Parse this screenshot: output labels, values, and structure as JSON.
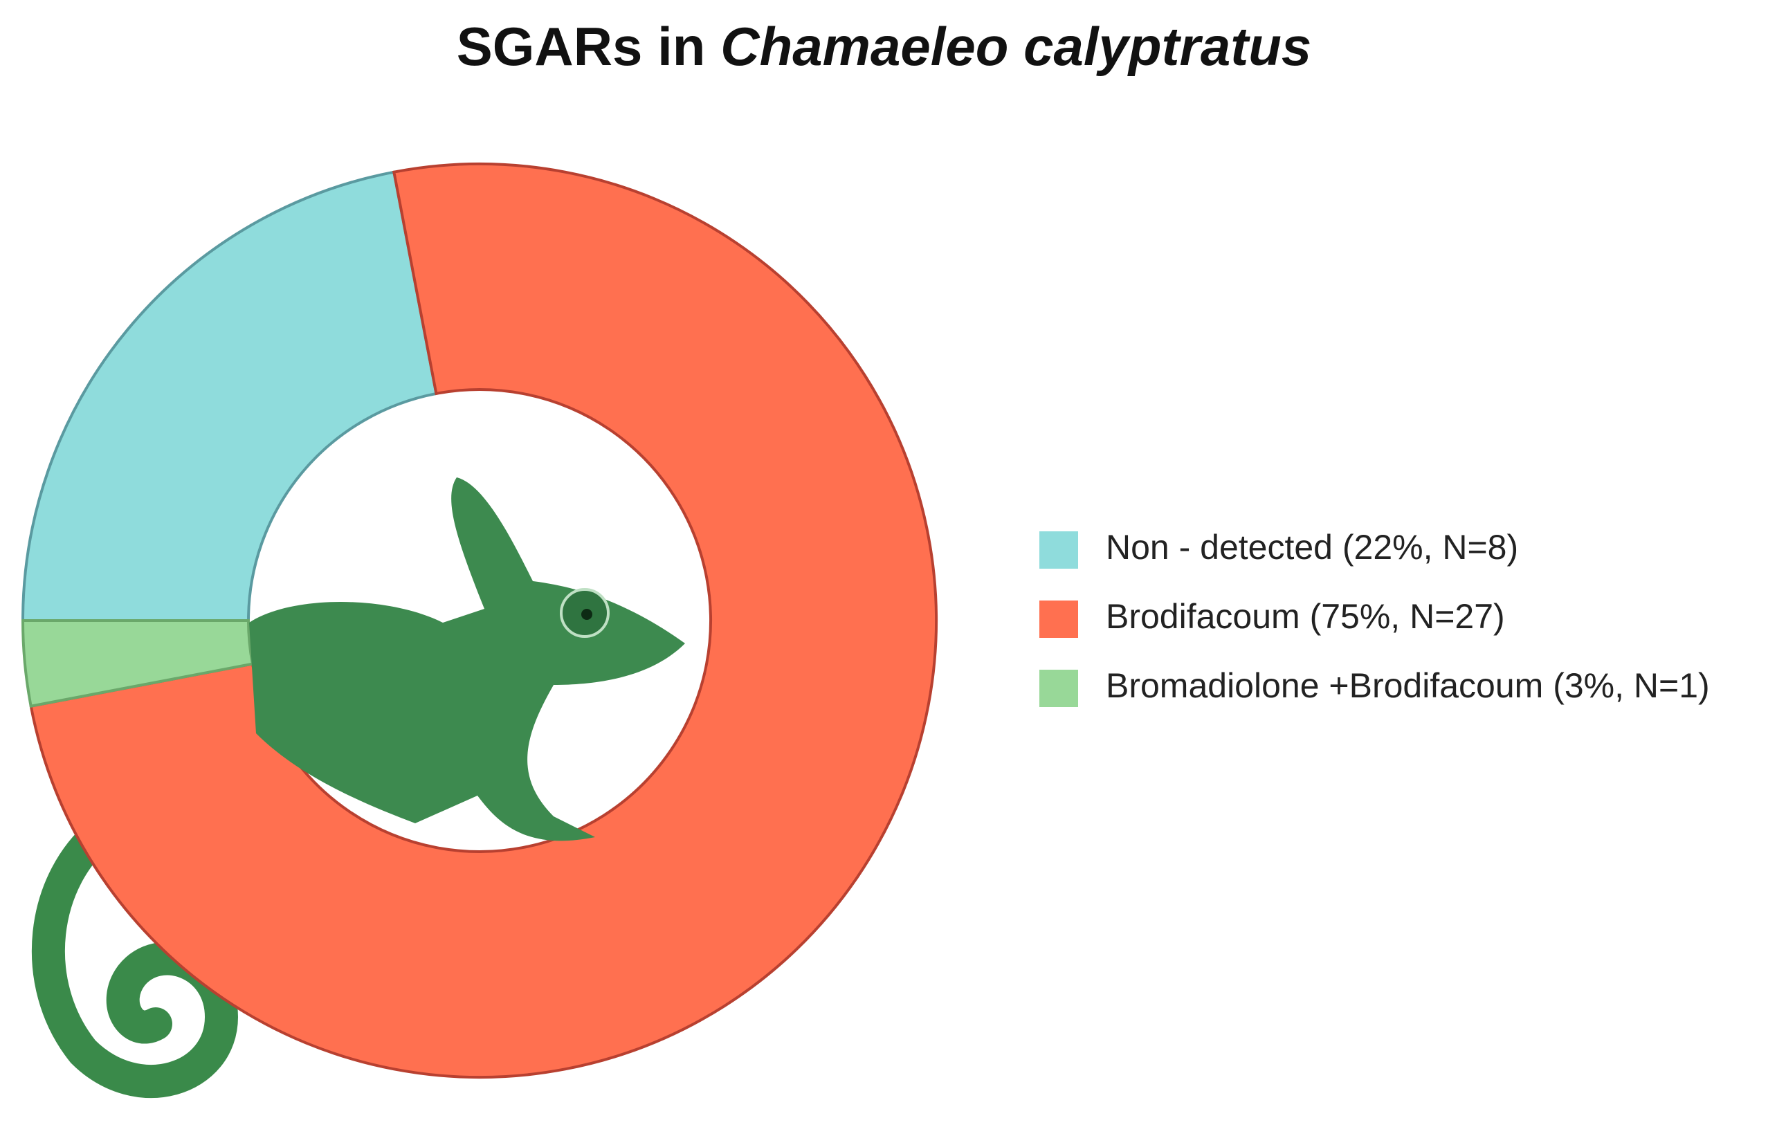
{
  "chart_data": {
    "type": "donut",
    "title": [
      "SGARs in",
      "Chamaeleo calyptratus"
    ],
    "categories": [
      "Non - detected (22%, N=8)",
      "Brodifacoum (75%, N=27)",
      "Bromadiolone +Brodifacoum (3%, N=1)"
    ],
    "values": [
      22,
      75,
      3
    ],
    "colors": [
      "#8fdcdc",
      "#ff7050",
      "#98d898"
    ],
    "legend": "right"
  }
}
